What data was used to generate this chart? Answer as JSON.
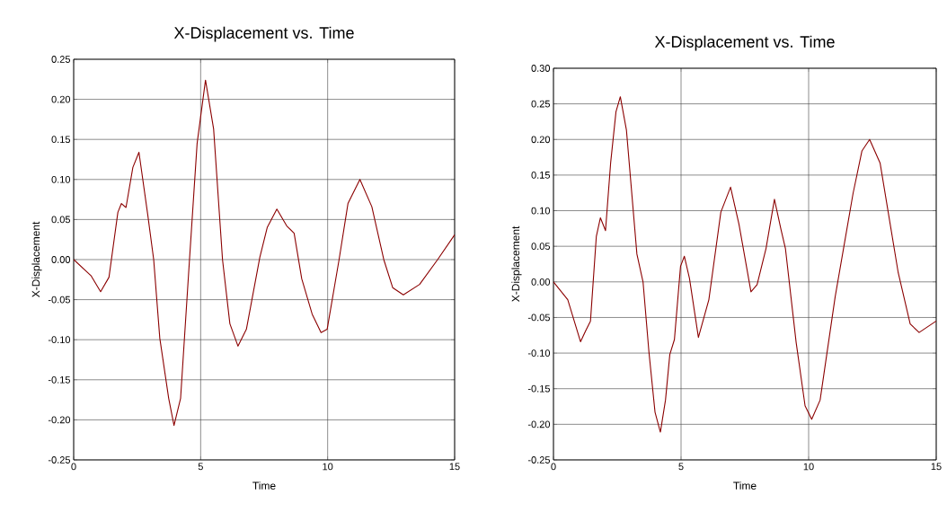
{
  "chart_data": [
    {
      "type": "line",
      "title": "X-Displacement vs. Time",
      "xlabel": "Time",
      "ylabel": "X-Displacement",
      "xlim": [
        0,
        15
      ],
      "xticks": [
        0,
        5,
        10,
        15
      ],
      "ylim": [
        -0.25,
        0.25
      ],
      "yticks": [
        {
          "value": -0.25,
          "label": "-0.25"
        },
        {
          "value": -0.2,
          "label": "-0.20"
        },
        {
          "value": -0.15,
          "label": "-0.15"
        },
        {
          "value": -0.1,
          "label": "-0.10"
        },
        {
          "value": -0.05,
          "label": "-0.05"
        },
        {
          "value": 0,
          "label": "0.00"
        },
        {
          "value": 0.05,
          "label": "0.05"
        },
        {
          "value": 0.1,
          "label": "0.10"
        },
        {
          "value": 0.15,
          "label": "0.15"
        },
        {
          "value": 0.2,
          "label": "0.20"
        },
        {
          "value": 0.25,
          "label": "0.25"
        }
      ],
      "grid": true,
      "marker": "none",
      "line_style": "solid",
      "series": [
        {
          "color": "#8b0000",
          "x": [
            0,
            0.68,
            1.06,
            1.39,
            1.74,
            1.88,
            2.06,
            2.33,
            2.57,
            2.92,
            3.15,
            3.39,
            3.74,
            3.95,
            4.21,
            4.56,
            4.86,
            5.19,
            5.51,
            5.86,
            6.15,
            6.47,
            6.8,
            7.33,
            7.62,
            8.0,
            8.39,
            8.68,
            8.98,
            9.39,
            9.74,
            9.98,
            10.45,
            10.8,
            11.27,
            11.74,
            12.21,
            12.56,
            12.98,
            13.62,
            14.33,
            15
          ],
          "values": [
            0,
            -0.02,
            -0.04,
            -0.022,
            0.059,
            0.07,
            0.065,
            0.115,
            0.134,
            0.055,
            0,
            -0.098,
            -0.173,
            -0.207,
            -0.173,
            0,
            0.145,
            0.224,
            0.163,
            0,
            -0.08,
            -0.108,
            -0.087,
            0.003,
            0.04,
            0.063,
            0.042,
            0.033,
            -0.024,
            -0.068,
            -0.091,
            -0.087,
            0,
            0.07,
            0.1,
            0.066,
            0,
            -0.035,
            -0.044,
            -0.031,
            0,
            0.031
          ]
        }
      ]
    },
    {
      "type": "line",
      "title": "X-Displacement vs. Time",
      "xlabel": "Time",
      "ylabel": "X-Displacement",
      "xlim": [
        0,
        15
      ],
      "xticks": [
        0,
        5,
        10,
        15
      ],
      "ylim": [
        -0.25,
        0.3
      ],
      "yticks": [
        {
          "value": -0.25,
          "label": "-0.25"
        },
        {
          "value": -0.2,
          "label": "-0.20"
        },
        {
          "value": -0.15,
          "label": "-0.15"
        },
        {
          "value": -0.1,
          "label": "-0.10"
        },
        {
          "value": -0.05,
          "label": "-0.05"
        },
        {
          "value": 0,
          "label": "0.00"
        },
        {
          "value": 0.05,
          "label": "0.05"
        },
        {
          "value": 0.1,
          "label": "0.10"
        },
        {
          "value": 0.15,
          "label": "0.15"
        },
        {
          "value": 0.2,
          "label": "0.20"
        },
        {
          "value": 0.25,
          "label": "0.25"
        },
        {
          "value": 0.3,
          "label": "0.30"
        }
      ],
      "grid": true,
      "marker": "none",
      "line_style": "solid",
      "series": [
        {
          "color": "#8b0000",
          "x": [
            0,
            0.56,
            1.06,
            1.27,
            1.45,
            1.68,
            1.84,
            2.04,
            2.24,
            2.45,
            2.62,
            2.86,
            3.27,
            3.51,
            3.74,
            3.98,
            4.19,
            4.39,
            4.56,
            4.74,
            4.98,
            5.13,
            5.33,
            5.68,
            6.09,
            6.56,
            6.94,
            7.27,
            7.74,
            7.98,
            8.33,
            8.66,
            8.92,
            9.09,
            9.51,
            9.86,
            10.12,
            10.45,
            11.04,
            11.74,
            12.09,
            12.39,
            12.8,
            13.51,
            13.98,
            14.33,
            15
          ],
          "values": [
            0,
            -0.025,
            -0.084,
            -0.068,
            -0.055,
            0.064,
            0.09,
            0.072,
            0.167,
            0.239,
            0.26,
            0.213,
            0.039,
            0,
            -0.098,
            -0.183,
            -0.211,
            -0.166,
            -0.102,
            -0.081,
            0.022,
            0.036,
            0.005,
            -0.078,
            -0.025,
            0.098,
            0.133,
            0.081,
            -0.014,
            -0.004,
            0.047,
            0.116,
            0.073,
            0.047,
            -0.085,
            -0.174,
            -0.193,
            -0.166,
            -0.021,
            0.124,
            0.184,
            0.2,
            0.167,
            0.013,
            -0.059,
            -0.071,
            -0.055
          ]
        }
      ]
    }
  ]
}
